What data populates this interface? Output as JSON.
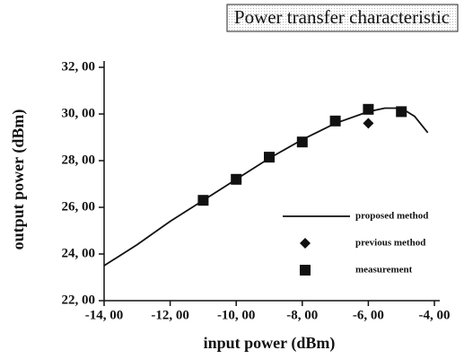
{
  "chart_data": {
    "type": "line",
    "title": "Power transfer characteristic",
    "x_label": "input power (dBm)",
    "y_label": "output power (dBm)",
    "xlim": [
      -14,
      -4
    ],
    "ylim": [
      22,
      32
    ],
    "xticks": [
      {
        "value": -14,
        "label": "-14, 00"
      },
      {
        "value": -12,
        "label": "-12, 00"
      },
      {
        "value": -10,
        "label": "-10, 00"
      },
      {
        "value": -8,
        "label": "-8, 00"
      },
      {
        "value": -6,
        "label": "-6, 00"
      },
      {
        "value": -4,
        "label": "-4, 00"
      }
    ],
    "yticks": [
      {
        "value": 22,
        "label": "22, 00"
      },
      {
        "value": 24,
        "label": "24, 00"
      },
      {
        "value": 26,
        "label": "26, 00"
      },
      {
        "value": 28,
        "label": "28, 00"
      },
      {
        "value": 30,
        "label": "30, 00"
      },
      {
        "value": 32,
        "label": "32, 00"
      }
    ],
    "legend": "lower right",
    "series": [
      {
        "name": "proposed method",
        "color": "#111111",
        "marker": "none",
        "x": [
          -14,
          -13,
          -12,
          -11,
          -10,
          -9,
          -8,
          -7,
          -6,
          -5.5,
          -5,
          -4.6,
          -4.2
        ],
        "values": [
          23.5,
          24.4,
          25.4,
          26.3,
          27.2,
          28.1,
          28.9,
          29.6,
          30.1,
          30.25,
          30.25,
          29.9,
          29.2
        ]
      },
      {
        "name": "previous method",
        "color": "#111111",
        "marker": "diamond",
        "x": [
          -6
        ],
        "values": [
          29.6
        ]
      },
      {
        "name": "measurement",
        "color": "#111111",
        "marker": "square",
        "x": [
          -11,
          -10,
          -9,
          -8,
          -7,
          -6,
          -5
        ],
        "values": [
          26.3,
          27.2,
          28.15,
          28.8,
          29.7,
          30.2,
          30.1
        ]
      }
    ]
  }
}
